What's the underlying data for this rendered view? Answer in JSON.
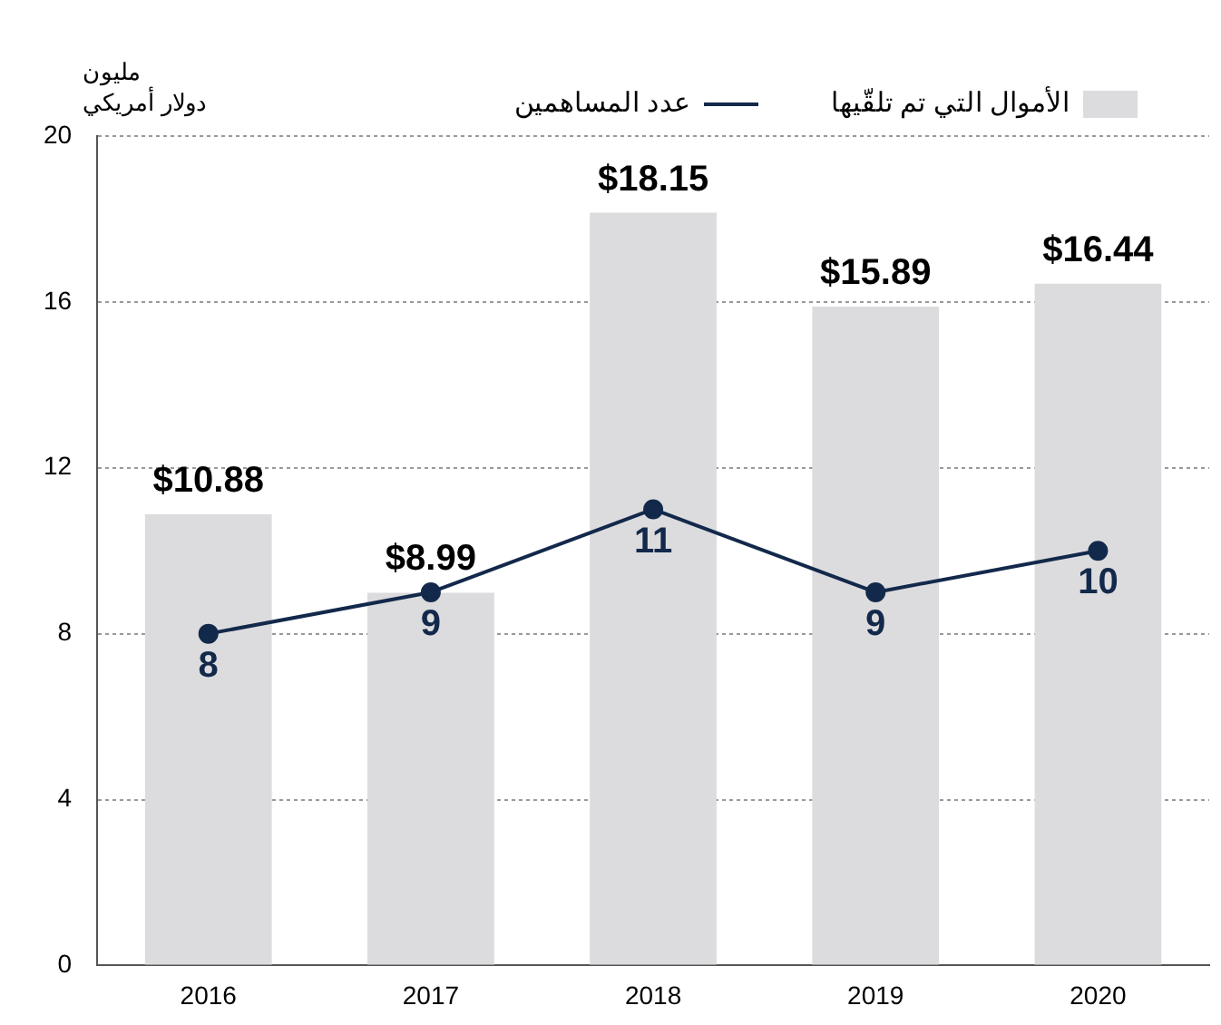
{
  "chart_data": {
    "type": "bar",
    "ylabel": "مليون\nدولار أمريكي",
    "categories": [
      "2016",
      "2017",
      "2018",
      "2019",
      "2020"
    ],
    "series": [
      {
        "name": "الأموال التي تم تلقّيها",
        "color": "#dcdcde",
        "values": [
          10.88,
          8.99,
          18.15,
          15.89,
          16.44
        ],
        "value_labels": [
          "$10.88",
          "$8.99",
          "$18.15",
          "$15.89",
          "$16.44"
        ]
      },
      {
        "name": "عدد المساهمين",
        "type": "line",
        "color": "#13294b",
        "values": [
          8,
          9,
          11,
          9,
          10
        ],
        "value_labels": [
          "8",
          "9",
          "11",
          "9",
          "10"
        ]
      }
    ],
    "ylim": [
      0,
      20
    ],
    "yticks": [
      0,
      4,
      8,
      12,
      16,
      20
    ],
    "grid": "y",
    "legend": "top right",
    "marker": "circle",
    "line_style": "solid"
  }
}
